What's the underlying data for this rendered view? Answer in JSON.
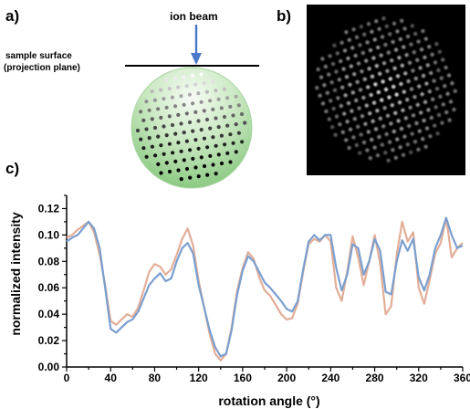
{
  "panels": {
    "a": {
      "label": "a)",
      "beam_label": "ion beam",
      "surface_label_line1": "sample surface",
      "surface_label_line2": "(projection plane)",
      "colors": {
        "beam": "#4a78c8",
        "sphere_light": "#dff2d8",
        "sphere_dark": "#7cc173",
        "sphere_edge": "#9fd39a"
      }
    },
    "b": {
      "label": "b)",
      "colors": {
        "background": "#000000",
        "spot": "#ffffff"
      }
    },
    "c": {
      "label": "c)"
    }
  },
  "chart_data": {
    "type": "line",
    "title": "",
    "xlabel": "rotation angle (°)",
    "ylabel": "normalized intensity",
    "xlim": [
      0,
      360
    ],
    "ylim": [
      0.0,
      0.13
    ],
    "xticks": [
      "0",
      "40",
      "80",
      "120",
      "160",
      "200",
      "240",
      "280",
      "320",
      "360"
    ],
    "yticks": [
      "0.00",
      "0.02",
      "0.04",
      "0.06",
      "0.08",
      "0.10",
      "0.12"
    ],
    "grid": false,
    "series": [
      {
        "color": "#e2ae98",
        "x": [
          0,
          5,
          10,
          15,
          20,
          25,
          30,
          35,
          40,
          45,
          50,
          55,
          60,
          65,
          70,
          75,
          80,
          85,
          90,
          95,
          100,
          105,
          110,
          115,
          120,
          125,
          130,
          135,
          140,
          145,
          150,
          155,
          160,
          165,
          170,
          175,
          180,
          185,
          190,
          195,
          200,
          205,
          210,
          215,
          220,
          225,
          230,
          235,
          240,
          245,
          250,
          255,
          260,
          265,
          270,
          275,
          280,
          285,
          290,
          295,
          300,
          305,
          310,
          315,
          320,
          325,
          330,
          335,
          340,
          345,
          350,
          355,
          360
        ],
        "y": [
          0.098,
          0.1,
          0.104,
          0.107,
          0.11,
          0.102,
          0.085,
          0.062,
          0.035,
          0.032,
          0.036,
          0.04,
          0.038,
          0.045,
          0.058,
          0.072,
          0.078,
          0.076,
          0.07,
          0.074,
          0.085,
          0.097,
          0.105,
          0.092,
          0.065,
          0.045,
          0.025,
          0.01,
          0.005,
          0.01,
          0.03,
          0.058,
          0.075,
          0.087,
          0.082,
          0.068,
          0.058,
          0.054,
          0.047,
          0.04,
          0.036,
          0.037,
          0.048,
          0.072,
          0.093,
          0.097,
          0.095,
          0.1,
          0.095,
          0.06,
          0.05,
          0.072,
          0.099,
          0.083,
          0.062,
          0.08,
          0.1,
          0.078,
          0.04,
          0.046,
          0.085,
          0.11,
          0.095,
          0.102,
          0.06,
          0.048,
          0.066,
          0.086,
          0.094,
          0.113,
          0.083,
          0.09,
          0.094
        ]
      },
      {
        "color": "#7b9fcf",
        "x": [
          0,
          5,
          10,
          15,
          20,
          25,
          30,
          35,
          40,
          45,
          50,
          55,
          60,
          65,
          70,
          75,
          80,
          85,
          90,
          95,
          100,
          105,
          110,
          115,
          120,
          125,
          130,
          135,
          140,
          145,
          150,
          155,
          160,
          165,
          170,
          175,
          180,
          185,
          190,
          195,
          200,
          205,
          210,
          215,
          220,
          225,
          230,
          235,
          240,
          245,
          250,
          255,
          260,
          265,
          270,
          275,
          280,
          285,
          290,
          295,
          300,
          305,
          310,
          315,
          320,
          325,
          330,
          335,
          340,
          345,
          350,
          355,
          360
        ],
        "y": [
          0.095,
          0.098,
          0.1,
          0.105,
          0.11,
          0.105,
          0.09,
          0.06,
          0.029,
          0.026,
          0.03,
          0.034,
          0.036,
          0.042,
          0.052,
          0.062,
          0.067,
          0.071,
          0.065,
          0.067,
          0.08,
          0.09,
          0.094,
          0.086,
          0.062,
          0.045,
          0.028,
          0.015,
          0.008,
          0.01,
          0.028,
          0.055,
          0.073,
          0.084,
          0.08,
          0.072,
          0.064,
          0.06,
          0.055,
          0.05,
          0.044,
          0.042,
          0.05,
          0.074,
          0.095,
          0.1,
          0.096,
          0.1,
          0.1,
          0.075,
          0.058,
          0.07,
          0.093,
          0.09,
          0.07,
          0.08,
          0.097,
          0.088,
          0.057,
          0.055,
          0.08,
          0.096,
          0.088,
          0.097,
          0.068,
          0.058,
          0.07,
          0.09,
          0.1,
          0.113,
          0.1,
          0.09,
          0.092
        ]
      }
    ]
  }
}
